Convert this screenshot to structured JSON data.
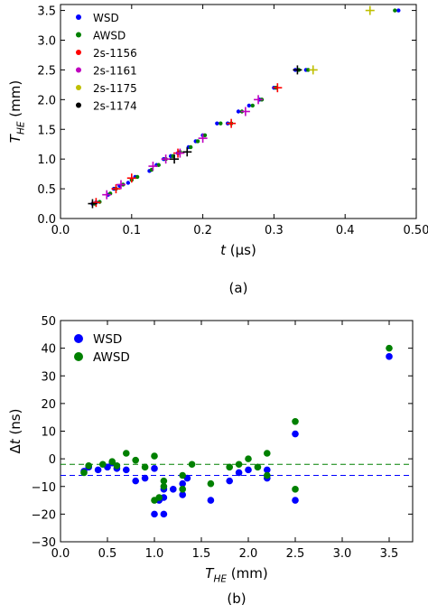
{
  "chart_data": [
    {
      "type": "scatter",
      "panel_label": "(a)",
      "xlabel": "t (µs)",
      "ylabel": "T_HE (mm)",
      "xlim": [
        0.0,
        0.5
      ],
      "ylim": [
        0.0,
        3.6
      ],
      "xticks": [
        "0.0",
        "0.1",
        "0.2",
        "0.3",
        "0.4",
        "0.50"
      ],
      "yticks": [
        "0.0",
        "0.5",
        "1.0",
        "1.5",
        "2.0",
        "2.5",
        "3.0",
        "3.5"
      ],
      "grid": false,
      "legend_position": "top-left",
      "series": [
        {
          "name": "WSD",
          "color": "#0000ff",
          "marker": "dot",
          "points": [
            [
              0.045,
              0.25
            ],
            [
              0.05,
              0.27
            ],
            [
              0.067,
              0.4
            ],
            [
              0.075,
              0.5
            ],
            [
              0.083,
              0.55
            ],
            [
              0.095,
              0.6
            ],
            [
              0.105,
              0.7
            ],
            [
              0.125,
              0.8
            ],
            [
              0.135,
              0.9
            ],
            [
              0.145,
              1.0
            ],
            [
              0.155,
              1.05
            ],
            [
              0.165,
              1.1
            ],
            [
              0.18,
              1.2
            ],
            [
              0.19,
              1.3
            ],
            [
              0.2,
              1.4
            ],
            [
              0.22,
              1.6
            ],
            [
              0.235,
              1.6
            ],
            [
              0.25,
              1.8
            ],
            [
              0.265,
              1.9
            ],
            [
              0.28,
              2.0
            ],
            [
              0.3,
              2.2
            ],
            [
              0.33,
              2.5
            ],
            [
              0.345,
              2.5
            ],
            [
              0.475,
              3.5
            ]
          ]
        },
        {
          "name": "AWSD",
          "color": "#008000",
          "marker": "dot",
          "points": [
            [
              0.048,
              0.25
            ],
            [
              0.055,
              0.28
            ],
            [
              0.07,
              0.42
            ],
            [
              0.078,
              0.5
            ],
            [
              0.088,
              0.57
            ],
            [
              0.1,
              0.65
            ],
            [
              0.108,
              0.7
            ],
            [
              0.128,
              0.82
            ],
            [
              0.138,
              0.9
            ],
            [
              0.148,
              1.0
            ],
            [
              0.158,
              1.05
            ],
            [
              0.168,
              1.12
            ],
            [
              0.183,
              1.2
            ],
            [
              0.193,
              1.3
            ],
            [
              0.203,
              1.4
            ],
            [
              0.225,
              1.6
            ],
            [
              0.24,
              1.6
            ],
            [
              0.255,
              1.8
            ],
            [
              0.27,
              1.9
            ],
            [
              0.283,
              2.0
            ],
            [
              0.303,
              2.2
            ],
            [
              0.335,
              2.5
            ],
            [
              0.348,
              2.5
            ],
            [
              0.47,
              3.5
            ]
          ]
        },
        {
          "name": "2s-1156",
          "color": "#ff0000",
          "marker": "plus",
          "points": [
            [
              0.05,
              0.27
            ],
            [
              0.078,
              0.5
            ],
            [
              0.1,
              0.68
            ],
            [
              0.165,
              1.1
            ],
            [
              0.24,
              1.6
            ],
            [
              0.305,
              2.2
            ]
          ]
        },
        {
          "name": "2s-1161",
          "color": "#bf00bf",
          "marker": "plus",
          "points": [
            [
              0.065,
              0.4
            ],
            [
              0.085,
              0.57
            ],
            [
              0.13,
              0.88
            ],
            [
              0.148,
              1.0
            ],
            [
              0.168,
              1.1
            ],
            [
              0.2,
              1.35
            ],
            [
              0.26,
              1.8
            ],
            [
              0.278,
              2.0
            ]
          ]
        },
        {
          "name": "2s-1175",
          "color": "#bfbf00",
          "marker": "plus",
          "points": [
            [
              0.355,
              2.5
            ],
            [
              0.435,
              3.5
            ]
          ]
        },
        {
          "name": "2s-1174",
          "color": "#000000",
          "marker": "plus",
          "points": [
            [
              0.045,
              0.25
            ],
            [
              0.16,
              1.0
            ],
            [
              0.178,
              1.12
            ],
            [
              0.333,
              2.5
            ]
          ]
        }
      ]
    },
    {
      "type": "scatter",
      "panel_label": "(b)",
      "xlabel": "T_HE (mm)",
      "ylabel": "Δt (ns)",
      "xlim": [
        0.0,
        3.75
      ],
      "ylim": [
        -30,
        50
      ],
      "xticks": [
        "0.0",
        "0.5",
        "1.0",
        "1.5",
        "2.0",
        "2.5",
        "3.0",
        "3.5"
      ],
      "yticks": [
        "−30",
        "−20",
        "−10",
        "0",
        "10",
        "20",
        "30",
        "40",
        "50"
      ],
      "grid": false,
      "legend_position": "top-left",
      "series": [
        {
          "name": "WSD",
          "color": "#0000ff",
          "marker": "dot",
          "mean_line": -6,
          "points": [
            [
              0.25,
              -4.5
            ],
            [
              0.3,
              -3
            ],
            [
              0.4,
              -4
            ],
            [
              0.5,
              -3
            ],
            [
              0.55,
              -1.5
            ],
            [
              0.6,
              -3.5
            ],
            [
              0.7,
              -4
            ],
            [
              0.8,
              -8
            ],
            [
              0.9,
              -7
            ],
            [
              1.0,
              -20
            ],
            [
              1.0,
              -3.5
            ],
            [
              1.05,
              -15
            ],
            [
              1.1,
              -14
            ],
            [
              1.1,
              -20
            ],
            [
              1.1,
              -11
            ],
            [
              1.2,
              -11
            ],
            [
              1.3,
              -13
            ],
            [
              1.3,
              -9
            ],
            [
              1.35,
              -7
            ],
            [
              1.6,
              -15
            ],
            [
              1.8,
              -8
            ],
            [
              1.9,
              -5
            ],
            [
              2.0,
              -4
            ],
            [
              2.2,
              -4
            ],
            [
              2.2,
              -7
            ],
            [
              2.5,
              9
            ],
            [
              2.5,
              -15
            ],
            [
              3.5,
              37
            ]
          ]
        },
        {
          "name": "AWSD",
          "color": "#008000",
          "marker": "dot",
          "mean_line": -2,
          "points": [
            [
              0.25,
              -5
            ],
            [
              0.3,
              -2.5
            ],
            [
              0.45,
              -2
            ],
            [
              0.55,
              -1
            ],
            [
              0.6,
              -2.5
            ],
            [
              0.7,
              2
            ],
            [
              0.8,
              -0.5
            ],
            [
              0.9,
              -3
            ],
            [
              1.0,
              1
            ],
            [
              1.0,
              -15
            ],
            [
              1.05,
              -14
            ],
            [
              1.1,
              -10
            ],
            [
              1.1,
              -8
            ],
            [
              1.3,
              -11
            ],
            [
              1.3,
              -6
            ],
            [
              1.4,
              -2
            ],
            [
              1.6,
              -9
            ],
            [
              1.8,
              -3
            ],
            [
              1.9,
              -2
            ],
            [
              2.0,
              0
            ],
            [
              2.1,
              -3
            ],
            [
              2.2,
              2
            ],
            [
              2.2,
              -6
            ],
            [
              2.5,
              13.5
            ],
            [
              2.5,
              -11
            ],
            [
              3.5,
              40
            ]
          ]
        }
      ]
    }
  ]
}
